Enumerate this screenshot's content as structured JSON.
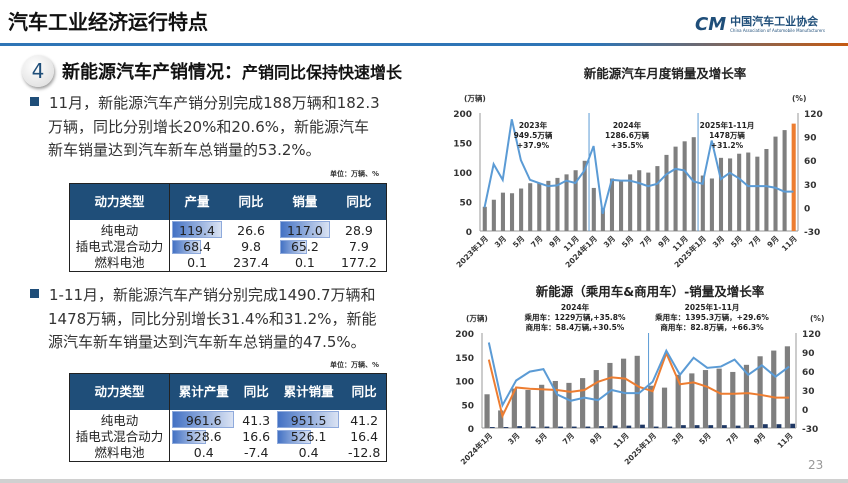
{
  "header": {
    "title": "汽车工业经济运行特点",
    "logo_cn": "中国汽车工业协会",
    "logo_en": "China Association of Automobile Manufacturers",
    "logo_mark": "CM"
  },
  "section": {
    "number": "4",
    "title": "新能源汽车产销情况：",
    "subtitle": "产销同比保持快速增长"
  },
  "bullet1": {
    "lines": [
      "11月，新能源汽车产销分别完成188万辆和182.3",
      "万辆，同比分别增长20%和20.6%，新能源汽车",
      "新车销量达到汽车新车总销量的53.2%。"
    ]
  },
  "table1": {
    "unit": "单位：万辆、%",
    "headers": [
      "动力类型",
      "产量",
      "同比",
      "销量",
      "同比"
    ],
    "rows": [
      [
        "纯电动",
        "119.4",
        "26.6",
        "117.0",
        "28.9"
      ],
      [
        "插电式混合动力",
        "68.4",
        "9.8",
        "65.2",
        "7.9"
      ],
      [
        "燃料电池",
        "0.1",
        "237.4",
        "0.1",
        "177.2"
      ]
    ]
  },
  "bullet2": {
    "lines": [
      "1-11月，新能源汽车产销分别完成1490.7万辆和",
      "1478万辆，同比分别增长31.4%和31.2%，新能",
      "源汽车新车销量达到汽车新车总销量的47.5%。"
    ]
  },
  "table2": {
    "unit": "单位：万辆、%",
    "headers": [
      "动力类型",
      "累计产量",
      "同比",
      "累计销量",
      "同比"
    ],
    "rows": [
      [
        "纯电动",
        "961.6",
        "41.3",
        "951.5",
        "41.2"
      ],
      [
        "插电式混合动力",
        "528.6",
        "16.6",
        "526.1",
        "16.4"
      ],
      [
        "燃料电池",
        "0.4",
        "-7.4",
        "0.4",
        "-12.8"
      ]
    ]
  },
  "colors": {
    "accent": "#1f4e79",
    "bar": "#7f7f7f",
    "highlight": "#ed7d31",
    "line": "#5b9bd5",
    "orange_line": "#ed7d31"
  },
  "chart_data": [
    {
      "type": "bar+line",
      "title": "新能源汽车月度销量及增长率",
      "ylabel": "(万辆)",
      "y2label": "(%)",
      "ylim": [
        0,
        200
      ],
      "y2lim": [
        -30,
        120
      ],
      "yticks": [
        "0",
        "50",
        "100",
        "150",
        "200"
      ],
      "y2ticks": [
        "-30",
        "0",
        "30",
        "60",
        "90",
        "120"
      ],
      "xticks": [
        "2023年1月",
        "3月",
        "5月",
        "7月",
        "9月",
        "11月",
        "2024年1月",
        "3月",
        "5月",
        "7月",
        "9月",
        "11月",
        "2025年1月",
        "3月",
        "5月",
        "7月",
        "9月",
        "11月"
      ],
      "annotations": [
        [
          "2023年",
          "949.5万辆",
          "+37.9%"
        ],
        [
          "2024年",
          "1286.6万辆",
          "+35.5%"
        ],
        [
          "2025年1-11月",
          "1478万辆",
          "+31.2%"
        ]
      ],
      "sales": [
        41,
        53,
        65,
        64,
        72,
        81,
        81,
        85,
        90,
        96,
        103,
        119,
        73,
        39,
        89,
        85,
        96,
        103,
        99,
        110,
        129,
        143,
        152,
        159,
        94,
        89,
        124,
        123,
        131,
        133,
        126,
        139,
        160,
        171,
        182
      ],
      "growth": [
        0,
        55,
        35,
        112,
        60,
        35,
        31,
        27,
        28,
        34,
        31,
        47,
        78,
        -8,
        35,
        34,
        34,
        31,
        27,
        30,
        42,
        49,
        47,
        33,
        30,
        85,
        36,
        44,
        37,
        27,
        27,
        27,
        25,
        20,
        20
      ]
    },
    {
      "type": "bar+line",
      "title": "新能源（乘用车&商用车）-销量及增长率",
      "ylabel": "(万辆)",
      "y2label": "(%)",
      "ylim": [
        0,
        200
      ],
      "y2lim": [
        -30,
        120
      ],
      "yticks": [
        "0",
        "50",
        "100",
        "150",
        "200"
      ],
      "y2ticks": [
        "-30",
        "0",
        "30",
        "60",
        "90",
        "120"
      ],
      "xticks": [
        "2024年1月",
        "3月",
        "5月",
        "7月",
        "9月",
        "11月",
        "2025年1月",
        "3月",
        "5月",
        "7月",
        "9月",
        "11月"
      ],
      "annotations": [
        [
          "2024年",
          "乘用车：1229万辆,+35.8%",
          "商用车：58.4万辆,+30.5%"
        ],
        [
          "2025年1-11月",
          "乘用车：1395.3万辆，+29.6%",
          "商用车：82.8万辆，+66.3%"
        ]
      ],
      "passenger_sales": [
        71,
        37,
        83,
        80,
        91,
        99,
        95,
        105,
        122,
        137,
        146,
        152,
        89,
        85,
        112,
        115,
        122,
        125,
        118,
        133,
        151,
        163,
        172
      ],
      "commercial_sales": [
        2,
        2,
        4,
        3,
        3,
        3,
        3,
        3,
        4,
        5,
        5,
        7,
        3,
        3,
        6,
        6,
        6,
        6,
        5,
        6,
        8,
        8,
        9
      ],
      "passenger_growth": [
        78,
        -11,
        34,
        32,
        31,
        30,
        27,
        30,
        43,
        50,
        48,
        35,
        28,
        88,
        39,
        42,
        35,
        24,
        24,
        25,
        22,
        18,
        18
      ],
      "commercial_growth": [
        105,
        6,
        45,
        59,
        63,
        23,
        13,
        18,
        14,
        30,
        25,
        25,
        43,
        92,
        54,
        81,
        65,
        67,
        78,
        54,
        69,
        51,
        67
      ]
    }
  ],
  "page_number": "23"
}
